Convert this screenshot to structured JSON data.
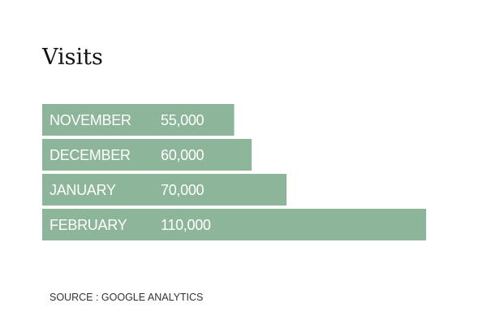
{
  "chart_data": {
    "type": "bar",
    "orientation": "horizontal",
    "title": "Visits",
    "categories": [
      "NOVEMBER",
      "DECEMBER",
      "JANUARY",
      "FEBRUARY"
    ],
    "values": [
      55000,
      60000,
      70000,
      110000
    ],
    "value_labels": [
      "55,000",
      "60,000",
      "70,000",
      "110,000"
    ],
    "bar_color": "#8db59a",
    "label_color": "#ffffff",
    "grid": false,
    "legend": "none",
    "xlabel": "",
    "ylabel": ""
  },
  "source": "SOURCE : GOOGLE ANALYTICS"
}
